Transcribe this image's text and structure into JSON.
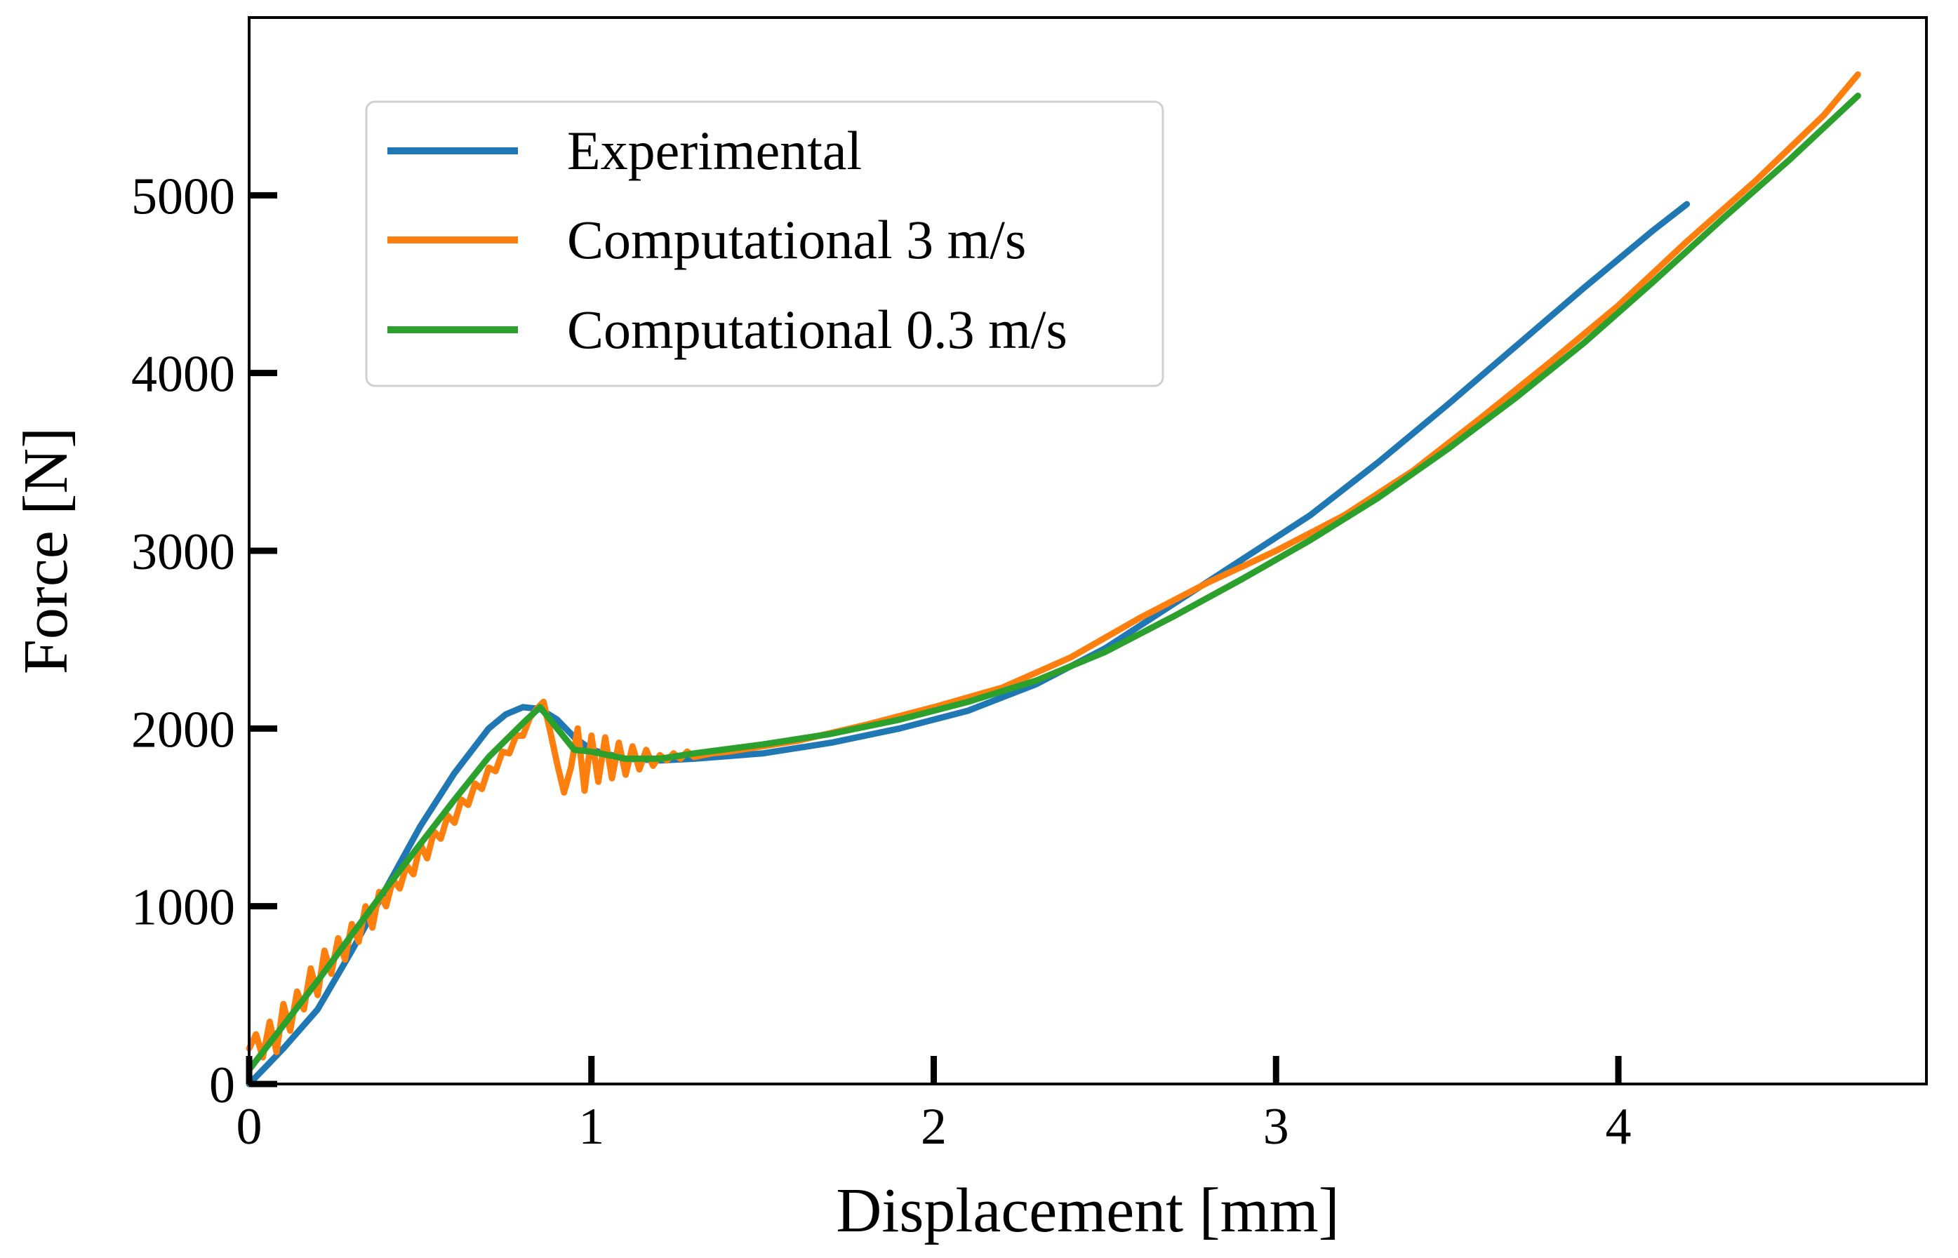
{
  "chart_data": {
    "type": "line",
    "title": "",
    "xlabel": "Displacement [mm]",
    "ylabel": "Force [N]",
    "xlim": [
      0,
      4.9
    ],
    "ylim": [
      0,
      6000
    ],
    "xticks": [
      0,
      1,
      2,
      3,
      4
    ],
    "xtick_labels": [
      "0",
      "1",
      "2",
      "3",
      "4"
    ],
    "yticks": [
      0,
      1000,
      2000,
      3000,
      4000,
      5000
    ],
    "ytick_labels": [
      "0",
      "1000",
      "2000",
      "3000",
      "4000",
      "5000"
    ],
    "grid": false,
    "legend_position": "upper-left",
    "series": [
      {
        "name": "Experimental",
        "color": "#1f77b4",
        "x": [
          0,
          0.05,
          0.1,
          0.2,
          0.3,
          0.4,
          0.5,
          0.6,
          0.7,
          0.75,
          0.8,
          0.85,
          0.9,
          0.95,
          1.0,
          1.1,
          1.2,
          1.3,
          1.5,
          1.7,
          1.9,
          2.1,
          2.3,
          2.5,
          2.7,
          2.9,
          3.1,
          3.3,
          3.5,
          3.7,
          3.9,
          4.1,
          4.2
        ],
        "y": [
          0,
          100,
          200,
          420,
          750,
          1100,
          1450,
          1750,
          2000,
          2080,
          2120,
          2110,
          2050,
          1950,
          1880,
          1830,
          1820,
          1830,
          1860,
          1920,
          2000,
          2100,
          2250,
          2450,
          2700,
          2950,
          3200,
          3500,
          3820,
          4150,
          4480,
          4800,
          4950
        ]
      },
      {
        "name": "Computational 3 m/s",
        "color": "#ff7f0e",
        "x": [
          0,
          0.02,
          0.04,
          0.06,
          0.08,
          0.1,
          0.12,
          0.14,
          0.16,
          0.18,
          0.2,
          0.22,
          0.24,
          0.26,
          0.28,
          0.3,
          0.32,
          0.34,
          0.36,
          0.38,
          0.4,
          0.42,
          0.44,
          0.46,
          0.48,
          0.5,
          0.52,
          0.54,
          0.56,
          0.58,
          0.6,
          0.62,
          0.64,
          0.66,
          0.68,
          0.7,
          0.72,
          0.74,
          0.76,
          0.78,
          0.8,
          0.82,
          0.84,
          0.86,
          0.88,
          0.9,
          0.92,
          0.94,
          0.96,
          0.98,
          1.0,
          1.02,
          1.04,
          1.06,
          1.08,
          1.1,
          1.12,
          1.14,
          1.16,
          1.18,
          1.2,
          1.22,
          1.24,
          1.26,
          1.28,
          1.3,
          1.35,
          1.4,
          1.5,
          1.6,
          1.8,
          2.0,
          2.2,
          2.4,
          2.6,
          2.8,
          3.0,
          3.2,
          3.4,
          3.6,
          3.8,
          4.0,
          4.2,
          4.4,
          4.6,
          4.7
        ],
        "y": [
          200,
          280,
          150,
          350,
          180,
          450,
          300,
          520,
          420,
          650,
          500,
          750,
          620,
          820,
          700,
          900,
          800,
          1000,
          880,
          1080,
          1000,
          1150,
          1100,
          1230,
          1180,
          1350,
          1270,
          1420,
          1380,
          1510,
          1470,
          1600,
          1570,
          1690,
          1660,
          1780,
          1760,
          1870,
          1860,
          1960,
          1960,
          2060,
          2110,
          2150,
          1980,
          1800,
          1640,
          1780,
          2000,
          1650,
          1960,
          1700,
          1950,
          1720,
          1920,
          1740,
          1900,
          1770,
          1880,
          1790,
          1850,
          1820,
          1860,
          1830,
          1870,
          1840,
          1860,
          1870,
          1900,
          1930,
          2020,
          2120,
          2230,
          2400,
          2620,
          2820,
          3000,
          3200,
          3450,
          3750,
          4060,
          4380,
          4740,
          5080,
          5450,
          5680
        ]
      },
      {
        "name": "Computational 0.3 m/s",
        "color": "#2ca02c",
        "x": [
          0,
          0.1,
          0.2,
          0.3,
          0.4,
          0.5,
          0.6,
          0.7,
          0.8,
          0.85,
          0.9,
          0.95,
          1.0,
          1.1,
          1.2,
          1.3,
          1.5,
          1.7,
          1.9,
          2.1,
          2.3,
          2.5,
          2.7,
          2.9,
          3.1,
          3.3,
          3.5,
          3.7,
          3.9,
          4.1,
          4.3,
          4.5,
          4.7
        ],
        "y": [
          80,
          330,
          580,
          840,
          1100,
          1350,
          1600,
          1840,
          2030,
          2120,
          2000,
          1880,
          1870,
          1830,
          1830,
          1860,
          1910,
          1970,
          2050,
          2150,
          2270,
          2430,
          2630,
          2840,
          3060,
          3300,
          3570,
          3860,
          4170,
          4510,
          4860,
          5200,
          5560
        ]
      }
    ]
  }
}
